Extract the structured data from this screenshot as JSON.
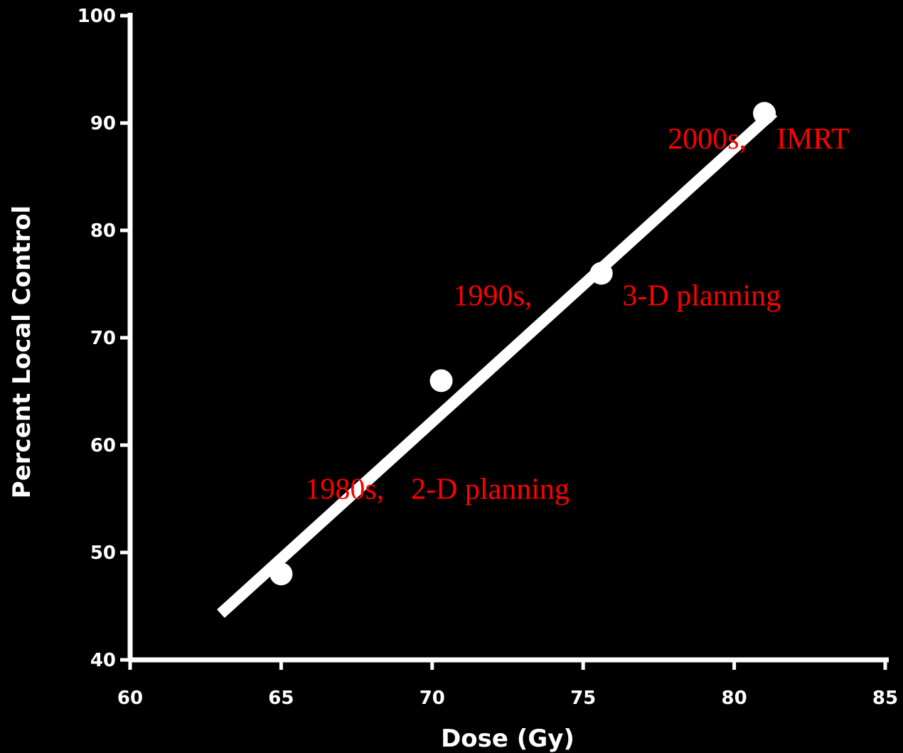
{
  "chart_data": {
    "type": "scatter",
    "xlabel": "Dose  (Gy)",
    "ylabel": "Percent Local Control",
    "xlim": [
      60,
      85
    ],
    "ylim": [
      40,
      100
    ],
    "xticks": [
      60,
      65,
      70,
      75,
      80,
      85
    ],
    "yticks": [
      40,
      50,
      60,
      70,
      80,
      90,
      100
    ],
    "points": [
      {
        "x": 65,
        "y": 48
      },
      {
        "x": 70.3,
        "y": 66
      },
      {
        "x": 75.6,
        "y": 76
      },
      {
        "x": 81,
        "y": 90.9
      }
    ],
    "fit_line": {
      "x": [
        63,
        81.3
      ],
      "y": [
        44.3,
        91
      ]
    },
    "annotations": [
      {
        "text": "1980s,",
        "x": 65.8,
        "y": 55
      },
      {
        "text": "2-D planning",
        "x": 69.3,
        "y": 55
      },
      {
        "text": "1990s,",
        "x": 70.7,
        "y": 73
      },
      {
        "text": "3-D planning",
        "x": 76.3,
        "y": 73
      },
      {
        "text": "2000s,",
        "x": 77.8,
        "y": 87.6
      },
      {
        "text": "IMRT",
        "x": 81.4,
        "y": 87.6
      }
    ],
    "grid": false,
    "colors": {
      "background": "#000000",
      "axes": "#ffffff",
      "points": "#ffffff",
      "line": "#ffffff",
      "annotations": "#ff0000"
    }
  }
}
